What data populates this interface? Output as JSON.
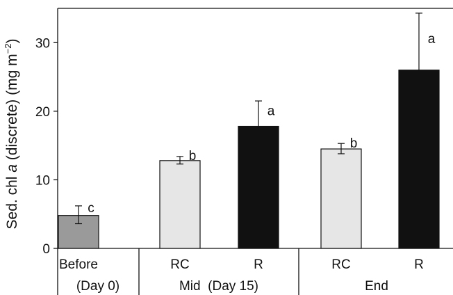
{
  "chart_data": {
    "type": "bar",
    "ylabel": {
      "prefix": "Sed. chl ",
      "italic": "a",
      "middle": " (discrete) (mg m",
      "superscript": "−2",
      "suffix": ")"
    },
    "ylim": [
      0,
      35
    ],
    "yticks": [
      0,
      10,
      20,
      30
    ],
    "grid": false,
    "bars": [
      {
        "group": "Before",
        "label": "Before",
        "value": 4.8,
        "error_low": 3.6,
        "error_high": 6.2,
        "letter": "c",
        "color": "#9a9a9a"
      },
      {
        "group": "Mid",
        "label": "RC",
        "value": 12.8,
        "error_low": 12.3,
        "error_high": 13.4,
        "letter": "b",
        "color": "#e6e6e6"
      },
      {
        "group": "Mid",
        "label": "R",
        "value": 17.8,
        "error_low": 17.8,
        "error_high": 21.5,
        "letter": "a",
        "color": "#111111"
      },
      {
        "group": "End",
        "label": "RC",
        "value": 14.5,
        "error_low": 13.8,
        "error_high": 15.3,
        "letter": "b",
        "color": "#e6e6e6"
      },
      {
        "group": "End",
        "label": "R",
        "value": 26.0,
        "error_low": 26.0,
        "error_high": 34.3,
        "letter": "a",
        "color": "#111111"
      }
    ],
    "group_labels": [
      "(Day 0)",
      "Mid  (Day 15)",
      "End"
    ]
  }
}
